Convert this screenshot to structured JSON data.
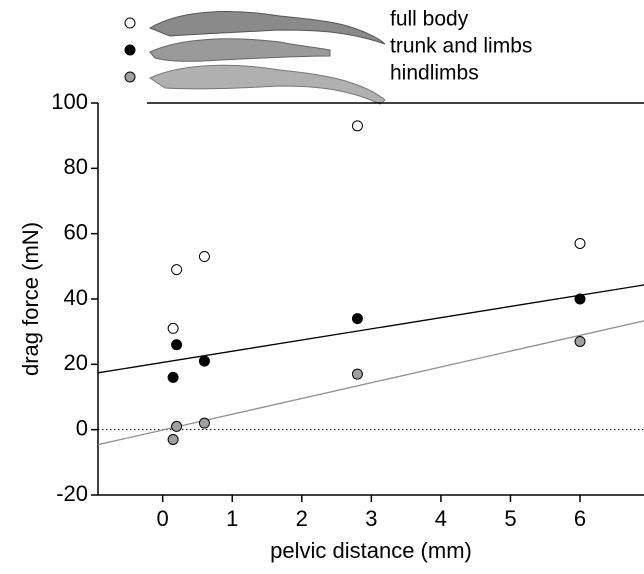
{
  "chart_data": {
    "type": "scatter",
    "xlabel": "pelvic distance (mm)",
    "ylabel": "drag force (mN)",
    "xlim": [
      -0.93,
      6.92
    ],
    "ylim": [
      -20,
      100
    ],
    "xticks": [
      0,
      1,
      2,
      3,
      4,
      5,
      6
    ],
    "yticks": [
      -20,
      0,
      20,
      40,
      60,
      80,
      100
    ],
    "reference_line": 0,
    "series": [
      {
        "name": "full body",
        "color": "#ffffff",
        "x": [
          0.15,
          0.2,
          0.6,
          2.8,
          6
        ],
        "values": [
          31,
          49,
          53,
          93,
          57
        ]
      },
      {
        "name": "trunk and limbs",
        "color": "#000000",
        "x": [
          0.15,
          0.2,
          0.6,
          2.8,
          6
        ],
        "values": [
          16,
          26,
          21,
          34,
          40
        ]
      },
      {
        "name": "hindlimbs",
        "color": "#a0a0a0",
        "x": [
          0.15,
          0.2,
          0.6,
          2.8,
          6
        ],
        "values": [
          -3,
          1,
          2,
          17,
          27
        ]
      }
    ],
    "fit_lines": [
      {
        "color": "#000000",
        "x": [
          -0.93,
          6.92
        ],
        "values": [
          17.4,
          44.3
        ]
      },
      {
        "color": "#909090",
        "x": [
          -0.93,
          6.92
        ],
        "values": [
          -4.6,
          33.3
        ]
      }
    ]
  }
}
